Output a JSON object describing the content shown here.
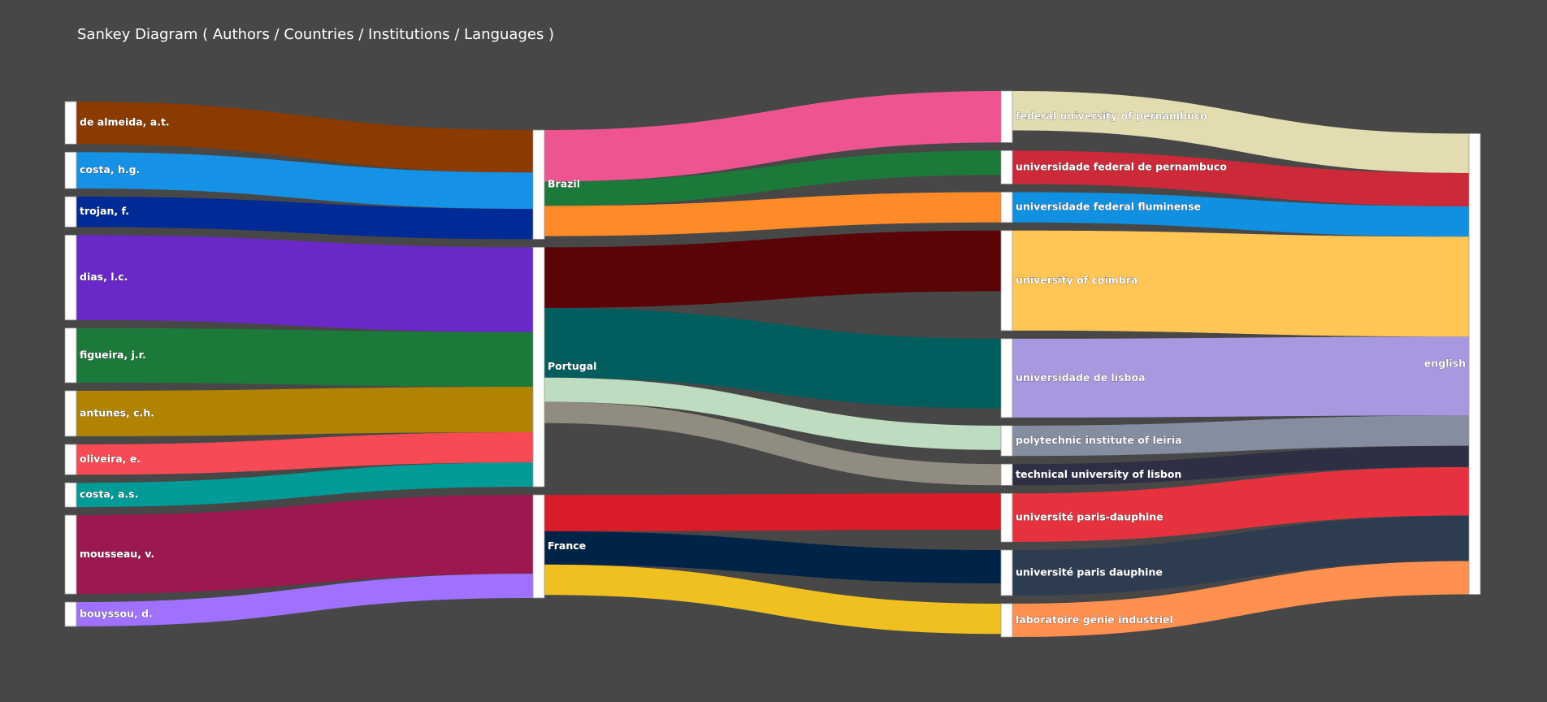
{
  "title": "Sankey Diagram ( Authors / Countries / Institutions / Languages )",
  "chart_data": {
    "type": "sankey",
    "columns": [
      "Authors",
      "Countries",
      "Institutions",
      "Languages"
    ],
    "nodes": [
      {
        "id": "de almeida, a.t.",
        "column": 0
      },
      {
        "id": "costa, h.g.",
        "column": 0
      },
      {
        "id": "trojan, f.",
        "column": 0
      },
      {
        "id": "dias, l.c.",
        "column": 0
      },
      {
        "id": "figueira, j.r.",
        "column": 0
      },
      {
        "id": "antunes, c.h.",
        "column": 0
      },
      {
        "id": "oliveira, e.",
        "column": 0
      },
      {
        "id": "costa, a.s.",
        "column": 0
      },
      {
        "id": "mousseau, v.",
        "column": 0
      },
      {
        "id": "bouyssou, d.",
        "column": 0
      },
      {
        "id": "Brazil",
        "column": 1
      },
      {
        "id": "Portugal",
        "column": 1
      },
      {
        "id": "France",
        "column": 1
      },
      {
        "id": "federal university of pernambuco",
        "column": 2
      },
      {
        "id": "universidade federal de pernambuco",
        "column": 2
      },
      {
        "id": "universidade federal fluminense",
        "column": 2
      },
      {
        "id": "university of coimbra",
        "column": 2
      },
      {
        "id": "universidade de lisboa",
        "column": 2
      },
      {
        "id": "polytechnic institute of leiria",
        "column": 2
      },
      {
        "id": "technical university of lisbon",
        "column": 2
      },
      {
        "id": "université paris-dauphine",
        "column": 2
      },
      {
        "id": "université paris dauphine",
        "column": 2
      },
      {
        "id": "laboratoire génie industriel",
        "column": 2
      },
      {
        "id": "english",
        "column": 3
      }
    ],
    "links": [
      {
        "source": "de almeida, a.t.",
        "target": "Brazil",
        "value": 14,
        "color": "#8b3a00"
      },
      {
        "source": "costa, h.g.",
        "target": "Brazil",
        "value": 12,
        "color": "#1592e6"
      },
      {
        "source": "trojan, f.",
        "target": "Brazil",
        "value": 10,
        "color": "#002a96"
      },
      {
        "source": "dias, l.c.",
        "target": "Portugal",
        "value": 28,
        "color": "#6a28c8"
      },
      {
        "source": "figueira, j.r.",
        "target": "Portugal",
        "value": 18,
        "color": "#1b7a3a"
      },
      {
        "source": "antunes, c.h.",
        "target": "Portugal",
        "value": 15,
        "color": "#b08400"
      },
      {
        "source": "oliveira, e.",
        "target": "Portugal",
        "value": 10,
        "color": "#f84a55"
      },
      {
        "source": "costa, a.s.",
        "target": "Portugal",
        "value": 8,
        "color": "#009b97"
      },
      {
        "source": "mousseau, v.",
        "target": "France",
        "value": 26,
        "color": "#9c1850"
      },
      {
        "source": "bouyssou, d.",
        "target": "France",
        "value": 8,
        "color": "#a070ff"
      },
      {
        "source": "Brazil",
        "target": "federal university of pernambuco",
        "value": 17,
        "color": "#ee5590"
      },
      {
        "source": "Brazil",
        "target": "universidade federal de pernambuco",
        "value": 8,
        "color": "#1b7a3a"
      },
      {
        "source": "Brazil",
        "target": "universidade federal fluminense",
        "value": 10,
        "color": "#ff8a28"
      },
      {
        "source": "Portugal",
        "target": "university of coimbra",
        "value": 20,
        "color": "#5a0408"
      },
      {
        "source": "Portugal",
        "target": "universidade de lisboa",
        "value": 23,
        "color": "#025e5e"
      },
      {
        "source": "Portugal",
        "target": "polytechnic institute of leiria",
        "value": 8,
        "color": "#bedcc0"
      },
      {
        "source": "Portugal",
        "target": "technical university of lisbon",
        "value": 7,
        "color": "#908c80"
      },
      {
        "source": "France",
        "target": "université paris-dauphine",
        "value": 12,
        "color": "#d81c28"
      },
      {
        "source": "France",
        "target": "université paris dauphine",
        "value": 11,
        "color": "#002448"
      },
      {
        "source": "France",
        "target": "laboratoire génie industriel",
        "value": 10,
        "color": "#f0c020"
      },
      {
        "source": "federal university of pernambuco",
        "target": "english",
        "value": 13,
        "color": "#e2dcb0"
      },
      {
        "source": "universidade federal de pernambuco",
        "target": "english",
        "value": 11,
        "color": "#cc2a38"
      },
      {
        "source": "universidade federal fluminense",
        "target": "english",
        "value": 10,
        "color": "#1090e0"
      },
      {
        "source": "university of coimbra",
        "target": "english",
        "value": 33,
        "color": "#ffc656"
      },
      {
        "source": "universidade de lisboa",
        "target": "english",
        "value": 26,
        "color": "#a898e0"
      },
      {
        "source": "polytechnic institute of leiria",
        "target": "english",
        "value": 10,
        "color": "#848ea0"
      },
      {
        "source": "technical university of lisbon",
        "target": "english",
        "value": 7,
        "color": "#2e2e44"
      },
      {
        "source": "université paris-dauphine",
        "target": "english",
        "value": 16,
        "color": "#e5323e"
      },
      {
        "source": "université paris dauphine",
        "target": "english",
        "value": 15,
        "color": "#2e3c52"
      },
      {
        "source": "laboratoire génie industriel",
        "target": "english",
        "value": 11,
        "color": "#ff9050"
      }
    ]
  }
}
